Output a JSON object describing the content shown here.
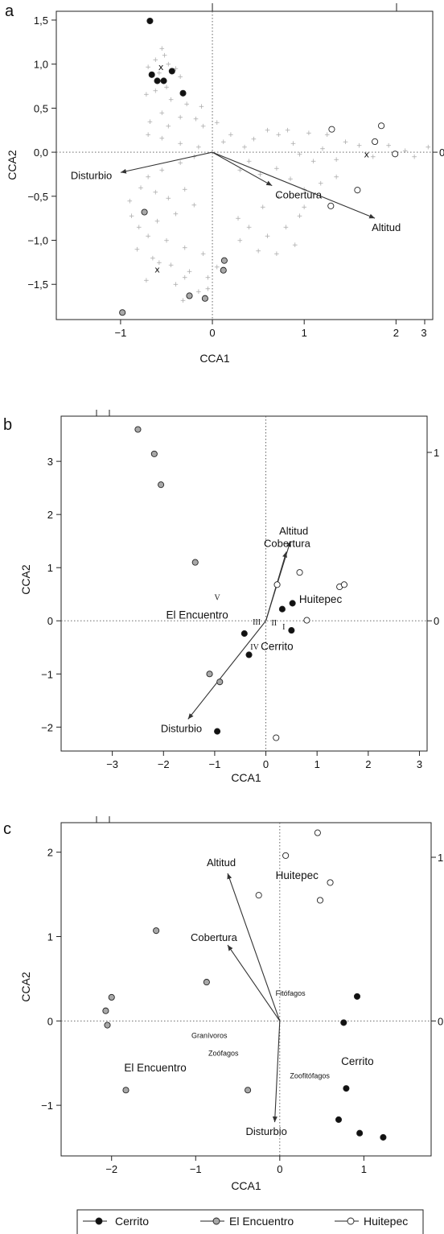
{
  "chart_data": [
    {
      "panel": "a",
      "type": "scatter",
      "xlabel": "CCA1",
      "ylabel": "CCA2",
      "xlim": [
        -1.7,
        2.4
      ],
      "ylim": [
        -1.9,
        1.6
      ],
      "xticks": [
        -1,
        0,
        1,
        2
      ],
      "xtick_labels": [
        "−1",
        "0",
        "1",
        "2"
      ],
      "yticks": [
        1.5,
        1.0,
        0.5,
        0.0,
        -0.5,
        -1.0,
        -1.5
      ],
      "ytick_labels": [
        "1,5",
        "1,0",
        "0,5",
        "0,0",
        "−0,5",
        "−1,0",
        "−1,5"
      ],
      "top_right_tick": "3",
      "right_tick": "0",
      "grid": false,
      "colors": {
        "Cerrito": "#111111",
        "El Encuentro": "#a8a8a8",
        "Huitepec": "#ffffff",
        "species": "#aaaaaa"
      },
      "arrows": [
        {
          "label": "Disturbio",
          "x": -1.0,
          "y": -0.23
        },
        {
          "label": "Cobertura",
          "x": 0.65,
          "y": -0.38
        },
        {
          "label": "Altitud",
          "x": 1.77,
          "y": -0.75
        }
      ],
      "series": [
        {
          "name": "Cerrito",
          "points": [
            [
              -0.68,
              1.49
            ],
            [
              -0.66,
              0.88
            ],
            [
              -0.6,
              0.81
            ],
            [
              -0.53,
              0.81
            ],
            [
              -0.44,
              0.92
            ],
            [
              -0.32,
              0.67
            ]
          ]
        },
        {
          "name": "El Encuentro",
          "points": [
            [
              -0.74,
              -0.68
            ],
            [
              0.13,
              -1.23
            ],
            [
              0.12,
              -1.34
            ],
            [
              -0.25,
              -1.63
            ],
            [
              -0.08,
              -1.66
            ],
            [
              -0.98,
              -1.82
            ]
          ]
        },
        {
          "name": "Huitepec",
          "points": [
            [
              1.3,
              0.26
            ],
            [
              1.84,
              0.3
            ],
            [
              1.77,
              0.12
            ],
            [
              1.99,
              -0.02
            ],
            [
              1.58,
              -0.43
            ],
            [
              1.29,
              -0.61
            ]
          ]
        },
        {
          "name": "centroids",
          "points": [
            [
              -0.56,
              0.97
            ],
            [
              1.68,
              -0.02
            ],
            [
              -0.6,
              -1.33
            ]
          ]
        },
        {
          "name": "species",
          "points": [
            [
              -0.55,
              1.18
            ],
            [
              -0.52,
              1.1
            ],
            [
              -0.62,
              1.05
            ],
            [
              -0.48,
              1.0
            ],
            [
              -0.7,
              0.97
            ],
            [
              -0.4,
              0.95
            ],
            [
              -0.58,
              0.9
            ],
            [
              -0.35,
              0.86
            ],
            [
              -0.5,
              0.74
            ],
            [
              -0.62,
              0.7
            ],
            [
              -0.72,
              0.66
            ],
            [
              -0.45,
              0.6
            ],
            [
              -0.28,
              0.55
            ],
            [
              -0.12,
              0.52
            ],
            [
              -0.55,
              0.45
            ],
            [
              -0.35,
              0.4
            ],
            [
              -0.18,
              0.38
            ],
            [
              -0.68,
              0.35
            ],
            [
              -0.48,
              0.3
            ],
            [
              -0.1,
              0.3
            ],
            [
              0.05,
              0.34
            ],
            [
              -0.7,
              0.2
            ],
            [
              -0.55,
              0.16
            ],
            [
              -0.35,
              0.1
            ],
            [
              -0.15,
              0.06
            ],
            [
              0.12,
              0.12
            ],
            [
              0.2,
              0.2
            ],
            [
              0.35,
              0.06
            ],
            [
              0.45,
              0.15
            ],
            [
              0.6,
              0.25
            ],
            [
              0.72,
              0.2
            ],
            [
              0.88,
              0.1
            ],
            [
              0.95,
              -0.02
            ],
            [
              1.1,
              -0.1
            ],
            [
              1.2,
              0.04
            ],
            [
              1.35,
              -0.08
            ],
            [
              1.45,
              0.12
            ],
            [
              1.6,
              0.08
            ],
            [
              1.75,
              -0.05
            ],
            [
              1.92,
              0.08
            ],
            [
              2.1,
              0.02
            ],
            [
              2.2,
              -0.05
            ],
            [
              2.35,
              0.06
            ],
            [
              0.82,
              0.25
            ],
            [
              1.05,
              0.22
            ],
            [
              1.25,
              0.2
            ],
            [
              0.4,
              -0.1
            ],
            [
              0.3,
              -0.2
            ],
            [
              0.52,
              -0.25
            ],
            [
              0.7,
              -0.18
            ],
            [
              0.85,
              -0.3
            ],
            [
              1.0,
              -0.42
            ],
            [
              1.18,
              -0.35
            ],
            [
              1.35,
              -0.28
            ],
            [
              1.0,
              -0.62
            ],
            [
              0.72,
              -0.5
            ],
            [
              0.55,
              -0.62
            ],
            [
              0.28,
              -0.75
            ],
            [
              0.4,
              -0.85
            ],
            [
              0.6,
              -0.95
            ],
            [
              0.8,
              -0.85
            ],
            [
              0.95,
              -0.72
            ],
            [
              0.3,
              -1.0
            ],
            [
              0.5,
              -1.12
            ],
            [
              0.7,
              -1.15
            ],
            [
              0.9,
              -1.05
            ],
            [
              -0.2,
              -0.05
            ],
            [
              -0.35,
              -0.12
            ],
            [
              -0.55,
              -0.2
            ],
            [
              -0.7,
              -0.28
            ],
            [
              -0.78,
              -0.4
            ],
            [
              -0.62,
              -0.45
            ],
            [
              -0.48,
              -0.52
            ],
            [
              -0.3,
              -0.42
            ],
            [
              -0.2,
              -0.6
            ],
            [
              -0.4,
              -0.7
            ],
            [
              -0.6,
              -0.78
            ],
            [
              -0.8,
              -0.85
            ],
            [
              -0.7,
              -0.95
            ],
            [
              -0.5,
              -1.0
            ],
            [
              -0.3,
              -1.08
            ],
            [
              -0.1,
              -1.15
            ],
            [
              -0.82,
              -1.1
            ],
            [
              -0.65,
              -1.2
            ],
            [
              -0.45,
              -1.28
            ],
            [
              -0.25,
              -1.35
            ],
            [
              -0.05,
              -1.42
            ],
            [
              -0.72,
              -1.45
            ],
            [
              -0.4,
              -1.5
            ],
            [
              -0.15,
              -1.58
            ],
            [
              -0.32,
              -1.68
            ],
            [
              -0.05,
              -1.55
            ],
            [
              0.05,
              -1.3
            ],
            [
              -0.9,
              -0.55
            ],
            [
              -0.88,
              -0.72
            ],
            [
              -0.58,
              -1.25
            ],
            [
              -0.3,
              -1.42
            ]
          ]
        }
      ]
    },
    {
      "panel": "b",
      "type": "scatter",
      "xlabel": "CCA1",
      "ylabel": "CCA2",
      "xlim": [
        -4.0,
        3.15
      ],
      "ylim": [
        -2.45,
        3.85
      ],
      "xticks": [
        -3,
        -2,
        -1,
        0,
        1,
        2,
        3
      ],
      "xtick_labels": [
        "−3",
        "−2",
        "−1",
        "0",
        "1",
        "2",
        "3"
      ],
      "yticks": [
        3,
        2,
        1,
        0,
        -1,
        -2
      ],
      "ytick_labels": [
        "3",
        "2",
        "1",
        "0",
        "−1",
        "−2"
      ],
      "right_ticks": [
        "1",
        "0"
      ],
      "grid": false,
      "arrows": [
        {
          "label": "Altitud",
          "x": 0.48,
          "y": 1.5
        },
        {
          "label": "Cobertura",
          "x": 0.4,
          "y": 1.3
        },
        {
          "label": "Disturbio",
          "x": -1.52,
          "y": -1.85
        }
      ],
      "site_labels": [
        "Huitepec",
        "El Encuentro",
        "Cerrito"
      ],
      "romans": [
        {
          "label": "V",
          "x": -0.95,
          "y": 0.45
        },
        {
          "label": "III",
          "x": -0.18,
          "y": -0.01
        },
        {
          "label": "II",
          "x": 0.16,
          "y": -0.03
        },
        {
          "label": "I",
          "x": 0.35,
          "y": -0.1
        },
        {
          "label": "IV",
          "x": -0.22,
          "y": -0.48
        }
      ],
      "series": [
        {
          "name": "Cerrito",
          "points": [
            [
              0.32,
              0.22
            ],
            [
              0.52,
              0.33
            ],
            [
              0.5,
              -0.18
            ],
            [
              -0.42,
              -0.24
            ],
            [
              -0.33,
              -0.64
            ],
            [
              -0.95,
              -2.08
            ]
          ]
        },
        {
          "name": "El Encuentro",
          "points": [
            [
              -2.5,
              3.6
            ],
            [
              -2.18,
              3.14
            ],
            [
              -2.05,
              2.56
            ],
            [
              -1.38,
              1.1
            ],
            [
              -1.1,
              -1.0
            ],
            [
              -0.9,
              -1.15
            ]
          ]
        },
        {
          "name": "Huitepec",
          "points": [
            [
              0.22,
              0.68
            ],
            [
              0.66,
              0.91
            ],
            [
              1.44,
              0.64
            ],
            [
              1.53,
              0.68
            ],
            [
              0.8,
              0.01
            ],
            [
              0.2,
              -2.2
            ]
          ]
        }
      ]
    },
    {
      "panel": "c",
      "type": "scatter",
      "xlabel": "CCA1",
      "ylabel": "CCA2",
      "xlim": [
        -2.6,
        1.8
      ],
      "ylim": [
        -1.6,
        2.35
      ],
      "xticks": [
        -2,
        -1,
        0,
        1
      ],
      "xtick_labels": [
        "−2",
        "−1",
        "0",
        "1"
      ],
      "yticks": [
        2,
        1,
        0,
        -1
      ],
      "ytick_labels": [
        "2",
        "1",
        "0",
        "−1"
      ],
      "right_ticks": [
        "1",
        "0"
      ],
      "grid": false,
      "arrows": [
        {
          "label": "Altitud",
          "x": -0.62,
          "y": 1.75
        },
        {
          "label": "Cobertura",
          "x": -0.62,
          "y": 0.9
        },
        {
          "label": "Disturbio",
          "x": -0.06,
          "y": -1.2
        }
      ],
      "site_labels": [
        "Huitepec",
        "El Encuentro",
        "Cerrito"
      ],
      "guild_labels": [
        "Fitófagos",
        "Granívoros",
        "Zoófagos",
        "Zoofitófagos"
      ],
      "series": [
        {
          "name": "Cerrito",
          "points": [
            [
              0.92,
              0.29
            ],
            [
              0.76,
              -0.02
            ],
            [
              0.79,
              -0.8
            ],
            [
              0.7,
              -1.17
            ],
            [
              0.95,
              -1.33
            ],
            [
              1.23,
              -1.38
            ]
          ]
        },
        {
          "name": "El Encuentro",
          "points": [
            [
              -1.47,
              1.07
            ],
            [
              -0.87,
              0.46
            ],
            [
              -2.0,
              0.28
            ],
            [
              -2.07,
              0.12
            ],
            [
              -2.05,
              -0.05
            ],
            [
              -1.83,
              -0.82
            ],
            [
              -0.38,
              -0.82
            ]
          ]
        },
        {
          "name": "Huitepec",
          "points": [
            [
              0.45,
              2.23
            ],
            [
              0.07,
              1.96
            ],
            [
              0.6,
              1.64
            ],
            [
              -0.25,
              1.49
            ],
            [
              0.48,
              1.43
            ]
          ]
        }
      ]
    }
  ],
  "panels": {
    "a": {
      "letter": "a"
    },
    "b": {
      "letter": "b"
    },
    "c": {
      "letter": "c"
    }
  },
  "legend": {
    "items": [
      {
        "name": "Cerrito",
        "label": "Cerrito",
        "fill": "#111111"
      },
      {
        "name": "El Encuentro",
        "label": "El Encuentro",
        "fill": "#a8a8a8"
      },
      {
        "name": "Huitepec",
        "label": "Huitepec",
        "fill": "#ffffff"
      }
    ]
  }
}
